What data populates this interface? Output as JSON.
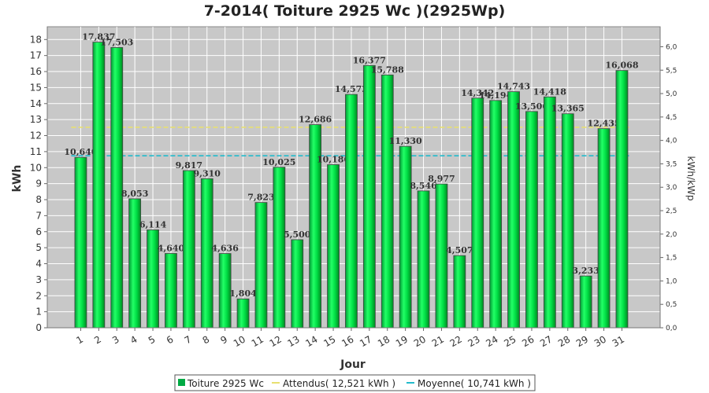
{
  "chart_data": {
    "type": "bar",
    "title": "7-2014( Toiture 2925 Wc )(2925Wp)",
    "xlabel": "Jour",
    "ylabel": "kWh",
    "ylabel_right": "kWh/kWp",
    "categories": [
      "1",
      "2",
      "3",
      "4",
      "5",
      "6",
      "7",
      "8",
      "9",
      "10",
      "11",
      "12",
      "13",
      "14",
      "15",
      "16",
      "17",
      "18",
      "19",
      "20",
      "21",
      "22",
      "23",
      "24",
      "25",
      "26",
      "27",
      "28",
      "29",
      "30",
      "31"
    ],
    "series": [
      {
        "name": "Toiture 2925 Wc",
        "values": [
          10.64,
          17.837,
          17.503,
          8.053,
          6.114,
          4.64,
          9.817,
          9.31,
          4.636,
          1.804,
          7.823,
          10.025,
          5.5,
          12.686,
          10.186,
          14.572,
          16.377,
          15.788,
          11.33,
          8.546,
          8.977,
          4.507,
          14.342,
          14.194,
          14.743,
          13.506,
          14.418,
          13.365,
          3.233,
          12.435,
          16.068
        ],
        "labels": [
          "10,640",
          "17,837",
          "17,503",
          "8,053",
          "6,114",
          "4,640",
          "9,817",
          "9,310",
          "4,636",
          "1,804",
          "7,823",
          "10,025",
          "5,500",
          "12,686",
          "10,186",
          "14,572",
          "16,377",
          "15,788",
          "11,330",
          "8,546",
          "8,977",
          "4,507",
          "14,342",
          "14,194",
          "14,743",
          "13,506",
          "14,418",
          "13,365",
          "3,233",
          "12,435",
          "16,068"
        ],
        "color": "#00cc44"
      }
    ],
    "reference_lines": [
      {
        "name": "Attendus( 12,521 kWh )",
        "value": 12.521,
        "color": "#e8e070"
      },
      {
        "name": "Moyenne( 10,741 kWh )",
        "value": 10.741,
        "color": "#22bbcc"
      }
    ],
    "ylim": [
      0,
      18.8
    ],
    "yticks": [
      0,
      1,
      2,
      3,
      4,
      5,
      6,
      7,
      8,
      9,
      10,
      11,
      12,
      13,
      14,
      15,
      16,
      17,
      18
    ],
    "ylim_right": [
      0,
      6.4274
    ],
    "yticks_right": [
      "0,0",
      "0,5",
      "1,0",
      "1,5",
      "2,0",
      "2,5",
      "3,0",
      "3,5",
      "4,0",
      "4,5",
      "5,0",
      "5,5",
      "6,0"
    ],
    "yticks_right_values": [
      0,
      0.5,
      1.0,
      1.5,
      2.0,
      2.5,
      3.0,
      3.5,
      4.0,
      4.5,
      5.0,
      5.5,
      6.0
    ],
    "grid": true,
    "legend_position": "bottom",
    "plot_background": "#c8c8c8",
    "grid_color": "#ffffff"
  }
}
